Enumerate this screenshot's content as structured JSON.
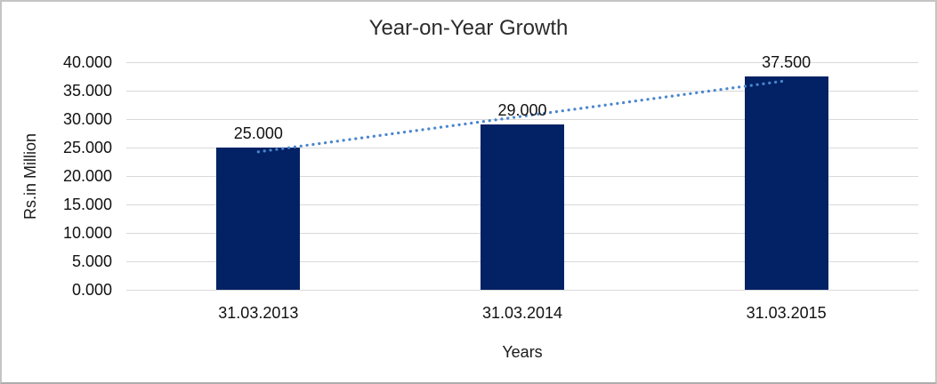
{
  "chart_data": {
    "type": "bar",
    "title": "Year-on-Year Growth",
    "xlabel": "Years",
    "ylabel": "Rs.in Million",
    "categories": [
      "31.03.2013",
      "31.03.2014",
      "31.03.2015"
    ],
    "values": [
      25.0,
      29.0,
      37.5
    ],
    "data_labels": [
      "25.000",
      "29.000",
      "37.500"
    ],
    "y_ticks": [
      {
        "value": 0,
        "label": "0.000"
      },
      {
        "value": 5,
        "label": "5.000"
      },
      {
        "value": 10,
        "label": "10.000"
      },
      {
        "value": 15,
        "label": "15.000"
      },
      {
        "value": 20,
        "label": "20.000"
      },
      {
        "value": 25,
        "label": "25.000"
      },
      {
        "value": 30,
        "label": "30.000"
      },
      {
        "value": 35,
        "label": "35.000"
      },
      {
        "value": 40,
        "label": "40.000"
      }
    ],
    "ylim": [
      0,
      40
    ],
    "grid": true,
    "legend_position": "none",
    "bar_color": "#022265",
    "trendline": {
      "type": "linear",
      "style": "dotted",
      "color": "#4a86cd",
      "values": [
        24.25,
        30.5,
        36.75
      ]
    },
    "gridline_color": "#d9d9d9"
  }
}
